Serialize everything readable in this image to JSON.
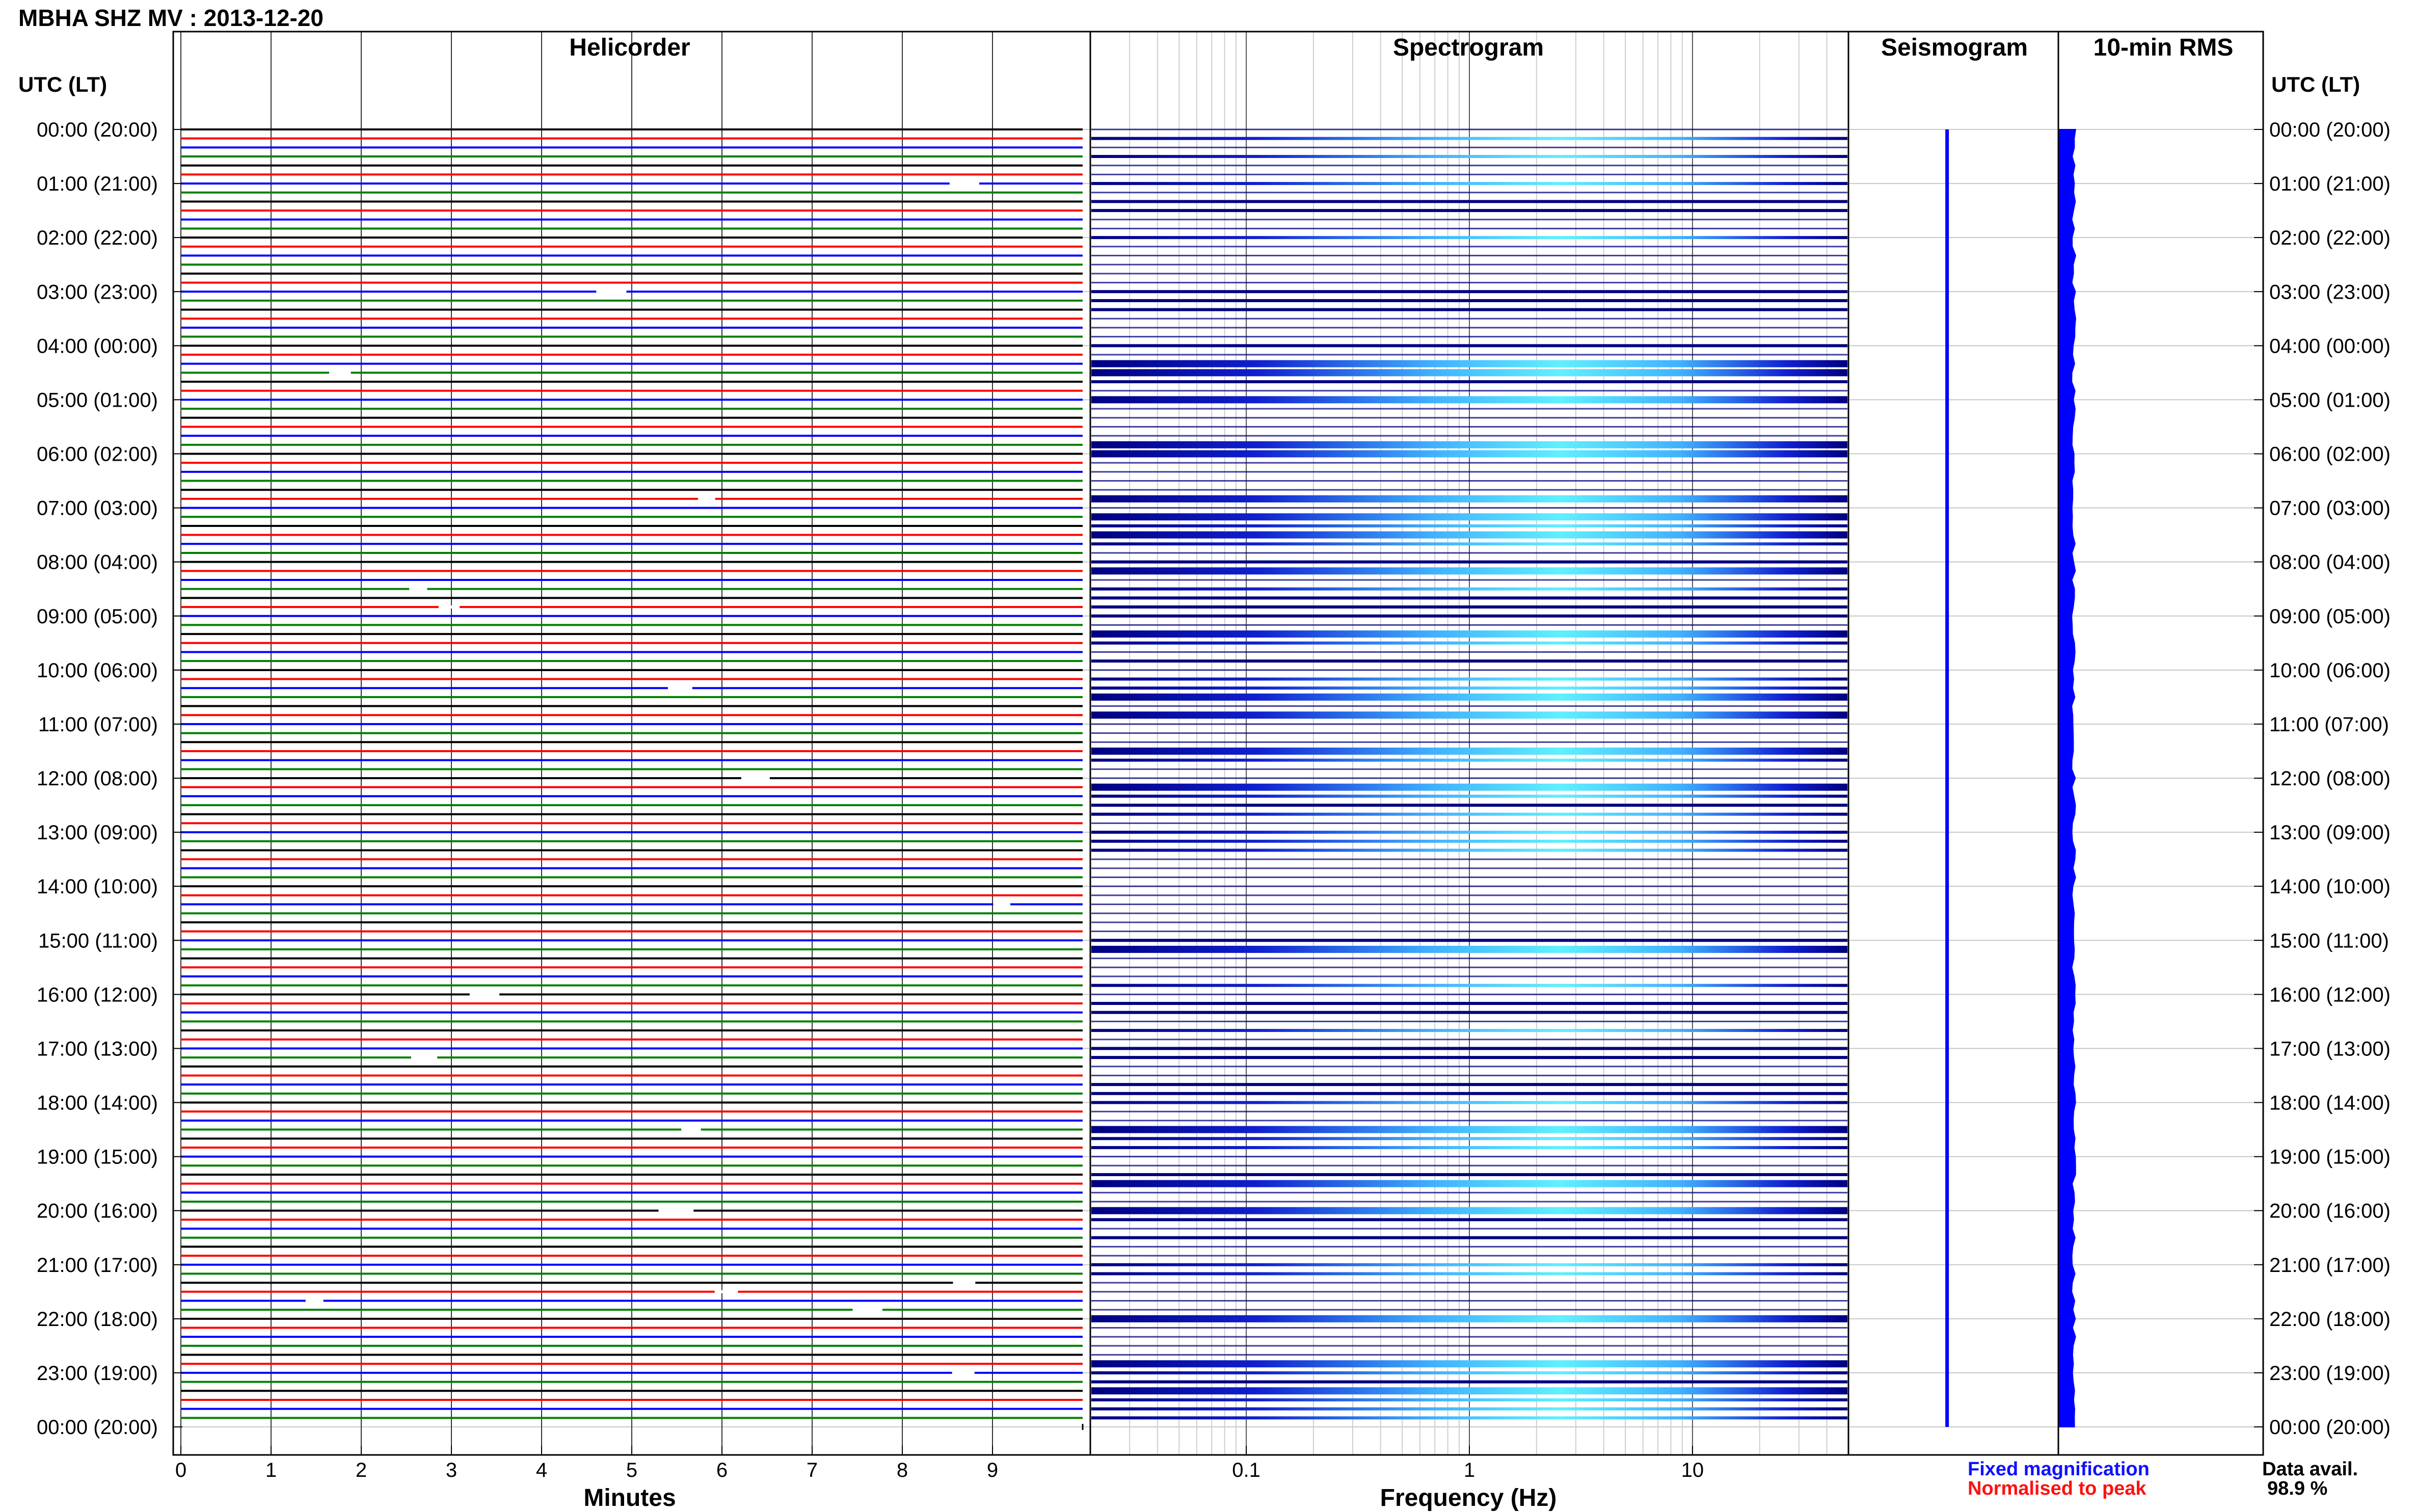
{
  "window": {
    "title": "MBHA SHZ MV : 2013-12-20"
  },
  "panels": {
    "helicorder": "Helicorder",
    "spectrogram": "Spectrogram",
    "seismogram": "Seismogram",
    "rms": "10-min RMS"
  },
  "axes": {
    "left_header": "UTC (LT)",
    "right_header": "UTC (LT)",
    "minutes_label": "Minutes",
    "frequency_label": "Frequency (Hz)"
  },
  "legend": {
    "fixed": "Fixed magnification",
    "normalised": "Normalised to peak",
    "fixed_color": "#1010ff",
    "normalised_color": "#ff1010"
  },
  "availability": {
    "label": "Data avail.",
    "value": "98.9 %"
  },
  "colors": {
    "trace_cycle": [
      "#000000",
      "#ff0000",
      "#0000ff",
      "#008000"
    ],
    "spectrogram_dark": "#00007f",
    "spectrogram_light": "#40e0ff",
    "seismogram": "#0000ff",
    "rms": "#0000ff",
    "grid": "#c8c8c8"
  },
  "chart_data": {
    "type": "helicorder",
    "station": "MBHA SHZ MV",
    "date": "2013-12-20",
    "hour_labels": [
      "00:00 (20:00)",
      "01:00 (21:00)",
      "02:00 (22:00)",
      "03:00 (23:00)",
      "04:00 (00:00)",
      "05:00 (01:00)",
      "06:00 (02:00)",
      "07:00 (03:00)",
      "08:00 (04:00)",
      "09:00 (05:00)",
      "10:00 (06:00)",
      "11:00 (07:00)",
      "12:00 (08:00)",
      "13:00 (09:00)",
      "14:00 (10:00)",
      "15:00 (11:00)",
      "16:00 (12:00)",
      "17:00 (13:00)",
      "18:00 (14:00)",
      "19:00 (15:00)",
      "20:00 (16:00)",
      "21:00 (17:00)",
      "22:00 (18:00)",
      "23:00 (19:00)",
      "00:00 (20:00)"
    ],
    "helicorder": {
      "xlabel": "Minutes",
      "xlim": [
        0,
        10
      ],
      "xticks": [
        0,
        1,
        2,
        3,
        4,
        5,
        6,
        7,
        8,
        9
      ],
      "rows": 144,
      "row_minutes": 10,
      "colors_cycle": [
        "#000000",
        "#ff0000",
        "#0000ff",
        "#008000"
      ]
    },
    "spectrogram": {
      "xlabel": "Frequency (Hz)",
      "scale": "log",
      "xlim": [
        0.02,
        50
      ],
      "xticks": [
        0.1,
        1,
        10
      ],
      "xticklabels": [
        "0.1",
        "1",
        "10"
      ]
    },
    "seismogram": {
      "line": "vertical trace, near-constant amplitude"
    },
    "rms": {
      "window": "10-min",
      "bar": "full-day near-constant level"
    },
    "legend": [
      "Fixed magnification",
      "Normalised to peak"
    ],
    "data_availability_percent": 98.9
  }
}
